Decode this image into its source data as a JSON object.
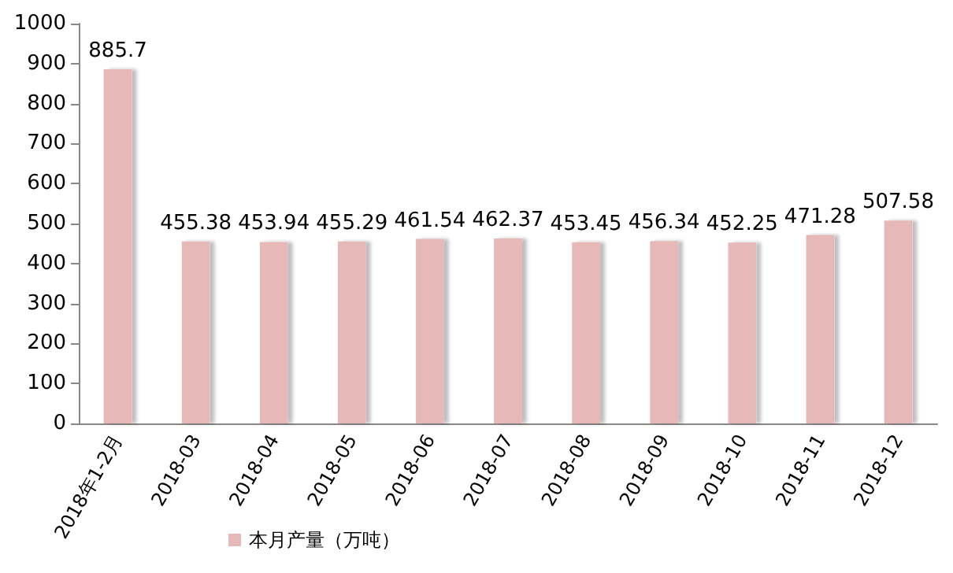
{
  "chart_data": {
    "type": "bar",
    "categories": [
      "2018年1-2月",
      "2018-03",
      "2018-04",
      "2018-05",
      "2018-06",
      "2018-07",
      "2018-08",
      "2018-09",
      "2018-10",
      "2018-11",
      "2018-12"
    ],
    "series": [
      {
        "name": "本月产量（万吨）",
        "color": "#e6b9b8",
        "values": [
          885.7,
          455.38,
          453.94,
          455.29,
          461.54,
          462.37,
          453.45,
          456.34,
          452.25,
          471.28,
          507.58
        ]
      }
    ],
    "ylim": [
      0,
      1000
    ],
    "yticks": [
      0,
      100,
      200,
      300,
      400,
      500,
      600,
      700,
      800,
      900,
      1000
    ],
    "grid": false,
    "legend": "bottom",
    "data_labels": true
  }
}
